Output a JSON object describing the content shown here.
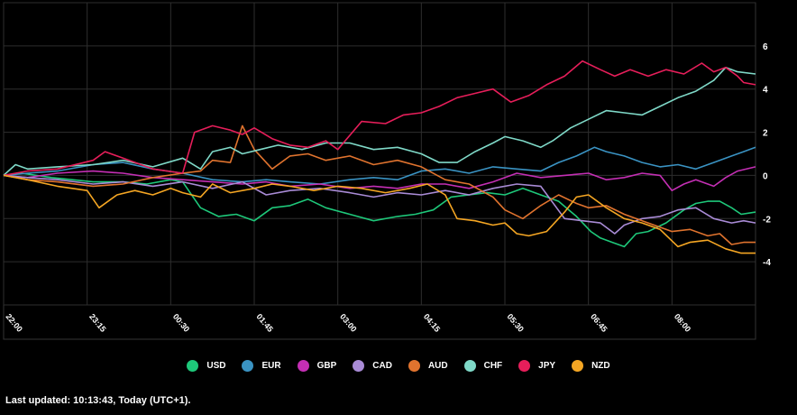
{
  "chart_data": {
    "type": "line",
    "x_ticks": [
      "22:00",
      "23:15",
      "00:30",
      "01:45",
      "03:00",
      "04:15",
      "05:30",
      "06:45",
      "08:00"
    ],
    "x_range": [
      0,
      630
    ],
    "ylim": [
      -6,
      8
    ],
    "y_ticks": [
      6,
      4,
      2,
      0,
      -2,
      -4
    ],
    "grid": true,
    "legend_position": "bottom",
    "series": [
      {
        "name": "USD",
        "color": "#1ec87a",
        "values": [
          [
            0,
            0
          ],
          [
            15,
            0.1
          ],
          [
            40,
            -0.1
          ],
          [
            75,
            -0.3
          ],
          [
            100,
            -0.3
          ],
          [
            120,
            -0.4
          ],
          [
            140,
            -0.2
          ],
          [
            150,
            -0.3
          ],
          [
            165,
            -1.5
          ],
          [
            180,
            -1.9
          ],
          [
            195,
            -1.8
          ],
          [
            210,
            -2.1
          ],
          [
            225,
            -1.5
          ],
          [
            240,
            -1.4
          ],
          [
            255,
            -1.1
          ],
          [
            270,
            -1.5
          ],
          [
            290,
            -1.8
          ],
          [
            310,
            -2.1
          ],
          [
            330,
            -1.9
          ],
          [
            345,
            -1.8
          ],
          [
            360,
            -1.6
          ],
          [
            375,
            -1.0
          ],
          [
            390,
            -0.9
          ],
          [
            405,
            -0.8
          ],
          [
            420,
            -0.9
          ],
          [
            435,
            -0.6
          ],
          [
            450,
            -0.9
          ],
          [
            465,
            -1.2
          ],
          [
            480,
            -1.9
          ],
          [
            492,
            -2.6
          ],
          [
            500,
            -2.9
          ],
          [
            510,
            -3.1
          ],
          [
            520,
            -3.3
          ],
          [
            530,
            -2.7
          ],
          [
            540,
            -2.6
          ],
          [
            555,
            -2.2
          ],
          [
            570,
            -1.6
          ],
          [
            580,
            -1.3
          ],
          [
            590,
            -1.2
          ],
          [
            600,
            -1.2
          ],
          [
            610,
            -1.5
          ],
          [
            618,
            -1.8
          ],
          [
            630,
            -1.7
          ]
        ]
      },
      {
        "name": "EUR",
        "color": "#3a93c3",
        "values": [
          [
            0,
            0
          ],
          [
            20,
            0.1
          ],
          [
            45,
            0.2
          ],
          [
            75,
            0.5
          ],
          [
            100,
            0.6
          ],
          [
            125,
            0.3
          ],
          [
            150,
            0.1
          ],
          [
            175,
            -0.2
          ],
          [
            200,
            -0.3
          ],
          [
            220,
            -0.2
          ],
          [
            240,
            -0.3
          ],
          [
            265,
            -0.4
          ],
          [
            290,
            -0.2
          ],
          [
            310,
            -0.1
          ],
          [
            330,
            -0.2
          ],
          [
            350,
            0.2
          ],
          [
            370,
            0.3
          ],
          [
            390,
            0.1
          ],
          [
            410,
            0.4
          ],
          [
            430,
            0.3
          ],
          [
            450,
            0.2
          ],
          [
            465,
            0.6
          ],
          [
            480,
            0.9
          ],
          [
            495,
            1.3
          ],
          [
            505,
            1.1
          ],
          [
            520,
            0.9
          ],
          [
            535,
            0.6
          ],
          [
            550,
            0.4
          ],
          [
            565,
            0.5
          ],
          [
            580,
            0.3
          ],
          [
            595,
            0.6
          ],
          [
            610,
            0.9
          ],
          [
            620,
            1.1
          ],
          [
            630,
            1.3
          ]
        ]
      },
      {
        "name": "GBP",
        "color": "#c42fb4",
        "values": [
          [
            0,
            0
          ],
          [
            20,
            -0.1
          ],
          [
            45,
            0.1
          ],
          [
            75,
            0.2
          ],
          [
            100,
            0.1
          ],
          [
            125,
            -0.1
          ],
          [
            150,
            -0.2
          ],
          [
            175,
            -0.3
          ],
          [
            200,
            -0.4
          ],
          [
            220,
            -0.3
          ],
          [
            240,
            -0.5
          ],
          [
            265,
            -0.4
          ],
          [
            290,
            -0.6
          ],
          [
            310,
            -0.5
          ],
          [
            330,
            -0.6
          ],
          [
            350,
            -0.4
          ],
          [
            370,
            -0.4
          ],
          [
            390,
            -0.6
          ],
          [
            410,
            -0.3
          ],
          [
            430,
            0.1
          ],
          [
            450,
            -0.1
          ],
          [
            470,
            0.0
          ],
          [
            490,
            0.1
          ],
          [
            505,
            -0.2
          ],
          [
            520,
            -0.1
          ],
          [
            535,
            0.1
          ],
          [
            550,
            0.0
          ],
          [
            560,
            -0.7
          ],
          [
            570,
            -0.4
          ],
          [
            580,
            -0.2
          ],
          [
            595,
            -0.5
          ],
          [
            605,
            -0.1
          ],
          [
            615,
            0.2
          ],
          [
            630,
            0.4
          ]
        ]
      },
      {
        "name": "CAD",
        "color": "#a98bd6",
        "values": [
          [
            0,
            0
          ],
          [
            20,
            -0.1
          ],
          [
            45,
            -0.2
          ],
          [
            75,
            -0.4
          ],
          [
            100,
            -0.3
          ],
          [
            125,
            -0.5
          ],
          [
            150,
            -0.3
          ],
          [
            175,
            -0.6
          ],
          [
            200,
            -0.3
          ],
          [
            220,
            -0.9
          ],
          [
            240,
            -0.7
          ],
          [
            265,
            -0.6
          ],
          [
            290,
            -0.8
          ],
          [
            310,
            -1.0
          ],
          [
            330,
            -0.8
          ],
          [
            350,
            -0.9
          ],
          [
            370,
            -0.7
          ],
          [
            390,
            -0.9
          ],
          [
            410,
            -0.6
          ],
          [
            430,
            -0.4
          ],
          [
            450,
            -0.5
          ],
          [
            470,
            -2.0
          ],
          [
            485,
            -2.1
          ],
          [
            500,
            -2.2
          ],
          [
            512,
            -2.7
          ],
          [
            520,
            -2.3
          ],
          [
            535,
            -2.0
          ],
          [
            550,
            -1.9
          ],
          [
            565,
            -1.6
          ],
          [
            580,
            -1.5
          ],
          [
            595,
            -2.0
          ],
          [
            610,
            -2.2
          ],
          [
            620,
            -2.1
          ],
          [
            630,
            -2.2
          ]
        ]
      },
      {
        "name": "AUD",
        "color": "#e0732e",
        "values": [
          [
            0,
            0
          ],
          [
            20,
            -0.2
          ],
          [
            45,
            -0.3
          ],
          [
            75,
            -0.5
          ],
          [
            100,
            -0.4
          ],
          [
            125,
            -0.1
          ],
          [
            150,
            0.1
          ],
          [
            165,
            0.2
          ],
          [
            175,
            0.7
          ],
          [
            190,
            0.6
          ],
          [
            200,
            2.3
          ],
          [
            210,
            1.2
          ],
          [
            225,
            0.3
          ],
          [
            240,
            0.9
          ],
          [
            255,
            1.0
          ],
          [
            270,
            0.7
          ],
          [
            290,
            0.9
          ],
          [
            310,
            0.5
          ],
          [
            330,
            0.7
          ],
          [
            350,
            0.4
          ],
          [
            370,
            -0.2
          ],
          [
            390,
            -0.4
          ],
          [
            410,
            -1.0
          ],
          [
            420,
            -1.6
          ],
          [
            435,
            -2.0
          ],
          [
            450,
            -1.4
          ],
          [
            465,
            -0.9
          ],
          [
            480,
            -1.3
          ],
          [
            490,
            -1.5
          ],
          [
            505,
            -1.4
          ],
          [
            520,
            -1.8
          ],
          [
            540,
            -2.2
          ],
          [
            560,
            -2.6
          ],
          [
            575,
            -2.5
          ],
          [
            590,
            -2.8
          ],
          [
            600,
            -2.7
          ],
          [
            610,
            -3.2
          ],
          [
            620,
            -3.1
          ],
          [
            630,
            -3.1
          ]
        ]
      },
      {
        "name": "CHF",
        "color": "#7fd9c8",
        "values": [
          [
            0,
            0
          ],
          [
            10,
            0.5
          ],
          [
            20,
            0.3
          ],
          [
            45,
            0.4
          ],
          [
            75,
            0.5
          ],
          [
            100,
            0.7
          ],
          [
            125,
            0.4
          ],
          [
            150,
            0.8
          ],
          [
            165,
            0.3
          ],
          [
            175,
            1.1
          ],
          [
            190,
            1.3
          ],
          [
            200,
            1.0
          ],
          [
            215,
            1.2
          ],
          [
            230,
            1.4
          ],
          [
            250,
            1.2
          ],
          [
            270,
            1.5
          ],
          [
            290,
            1.5
          ],
          [
            310,
            1.2
          ],
          [
            330,
            1.3
          ],
          [
            350,
            1.0
          ],
          [
            365,
            0.6
          ],
          [
            380,
            0.6
          ],
          [
            395,
            1.1
          ],
          [
            410,
            1.5
          ],
          [
            420,
            1.8
          ],
          [
            435,
            1.6
          ],
          [
            450,
            1.3
          ],
          [
            460,
            1.6
          ],
          [
            475,
            2.2
          ],
          [
            490,
            2.6
          ],
          [
            505,
            3.0
          ],
          [
            520,
            2.9
          ],
          [
            535,
            2.8
          ],
          [
            550,
            3.2
          ],
          [
            565,
            3.6
          ],
          [
            580,
            3.9
          ],
          [
            595,
            4.4
          ],
          [
            605,
            5.0
          ],
          [
            615,
            4.8
          ],
          [
            630,
            4.7
          ]
        ]
      },
      {
        "name": "JPY",
        "color": "#e61e5a",
        "values": [
          [
            0,
            0
          ],
          [
            20,
            0.2
          ],
          [
            45,
            0.3
          ],
          [
            75,
            0.7
          ],
          [
            85,
            1.1
          ],
          [
            100,
            0.8
          ],
          [
            125,
            0.3
          ],
          [
            150,
            0.1
          ],
          [
            160,
            2.0
          ],
          [
            175,
            2.3
          ],
          [
            190,
            2.1
          ],
          [
            200,
            1.9
          ],
          [
            210,
            2.2
          ],
          [
            225,
            1.7
          ],
          [
            240,
            1.4
          ],
          [
            255,
            1.3
          ],
          [
            270,
            1.6
          ],
          [
            280,
            1.2
          ],
          [
            300,
            2.5
          ],
          [
            320,
            2.4
          ],
          [
            335,
            2.8
          ],
          [
            350,
            2.9
          ],
          [
            365,
            3.2
          ],
          [
            380,
            3.6
          ],
          [
            395,
            3.8
          ],
          [
            410,
            4.0
          ],
          [
            425,
            3.4
          ],
          [
            440,
            3.7
          ],
          [
            455,
            4.2
          ],
          [
            470,
            4.6
          ],
          [
            485,
            5.3
          ],
          [
            500,
            4.9
          ],
          [
            512,
            4.6
          ],
          [
            525,
            4.9
          ],
          [
            540,
            4.6
          ],
          [
            555,
            4.9
          ],
          [
            570,
            4.7
          ],
          [
            585,
            5.2
          ],
          [
            595,
            4.8
          ],
          [
            605,
            5.0
          ],
          [
            615,
            4.6
          ],
          [
            620,
            4.3
          ],
          [
            630,
            4.2
          ]
        ]
      },
      {
        "name": "NZD",
        "color": "#f5a623",
        "values": [
          [
            0,
            0
          ],
          [
            20,
            -0.2
          ],
          [
            45,
            -0.5
          ],
          [
            70,
            -0.7
          ],
          [
            80,
            -1.5
          ],
          [
            95,
            -0.9
          ],
          [
            110,
            -0.7
          ],
          [
            125,
            -0.9
          ],
          [
            140,
            -0.6
          ],
          [
            150,
            -0.8
          ],
          [
            165,
            -1.0
          ],
          [
            175,
            -0.4
          ],
          [
            190,
            -0.8
          ],
          [
            210,
            -0.6
          ],
          [
            225,
            -0.4
          ],
          [
            240,
            -0.5
          ],
          [
            260,
            -0.7
          ],
          [
            280,
            -0.5
          ],
          [
            300,
            -0.6
          ],
          [
            320,
            -0.8
          ],
          [
            340,
            -0.6
          ],
          [
            355,
            -0.4
          ],
          [
            370,
            -0.9
          ],
          [
            380,
            -2.0
          ],
          [
            395,
            -2.1
          ],
          [
            410,
            -2.3
          ],
          [
            420,
            -2.2
          ],
          [
            430,
            -2.7
          ],
          [
            440,
            -2.8
          ],
          [
            455,
            -2.6
          ],
          [
            470,
            -1.7
          ],
          [
            480,
            -1.0
          ],
          [
            490,
            -0.9
          ],
          [
            505,
            -1.5
          ],
          [
            520,
            -2.0
          ],
          [
            535,
            -2.2
          ],
          [
            550,
            -2.5
          ],
          [
            565,
            -3.3
          ],
          [
            575,
            -3.1
          ],
          [
            590,
            -3.0
          ],
          [
            605,
            -3.4
          ],
          [
            618,
            -3.6
          ],
          [
            630,
            -3.6
          ]
        ]
      }
    ]
  },
  "legend": {
    "items": [
      {
        "label": "USD",
        "color": "#1ec87a"
      },
      {
        "label": "EUR",
        "color": "#3a93c3"
      },
      {
        "label": "GBP",
        "color": "#c42fb4"
      },
      {
        "label": "CAD",
        "color": "#a98bd6"
      },
      {
        "label": "AUD",
        "color": "#e0732e"
      },
      {
        "label": "CHF",
        "color": "#7fd9c8"
      },
      {
        "label": "JPY",
        "color": "#e61e5a"
      },
      {
        "label": "NZD",
        "color": "#f5a623"
      }
    ]
  },
  "footer": {
    "text": "Last updated: 10:13:43, Today (UTC+1)."
  }
}
